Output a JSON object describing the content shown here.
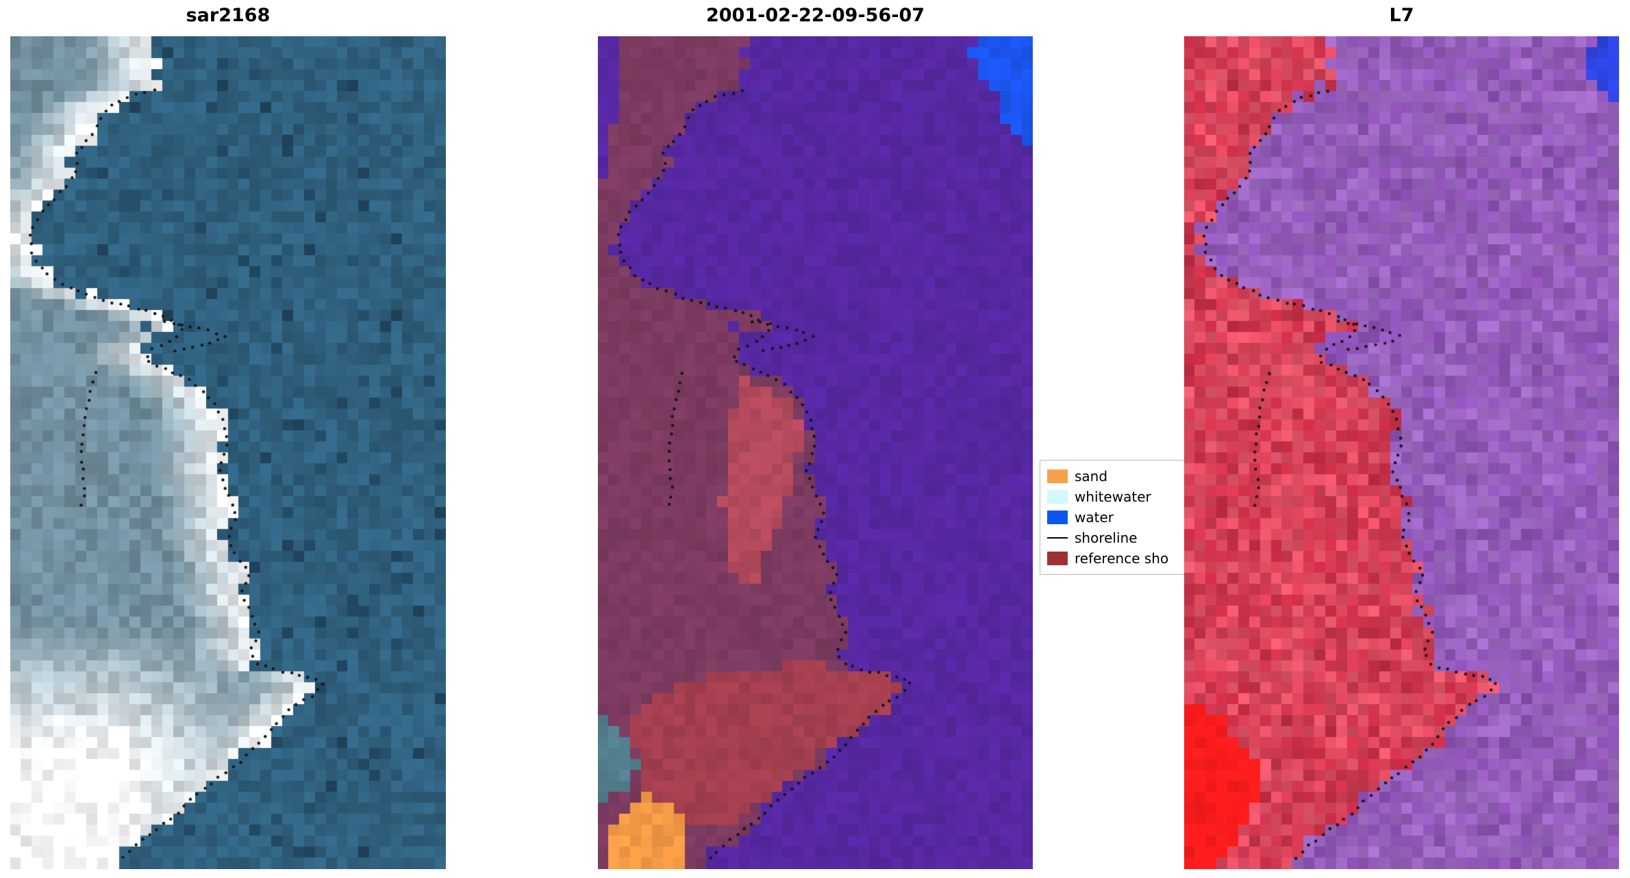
{
  "figure": {
    "panels": [
      {
        "id": "sar2168",
        "title": "sar2168"
      },
      {
        "id": "classified",
        "title": "2001-02-22-09-56-07"
      },
      {
        "id": "l7",
        "title": "L7"
      }
    ],
    "legend": {
      "items": [
        {
          "label": "sand",
          "swatch": "patch",
          "color": "#f7a24b"
        },
        {
          "label": "whitewater",
          "swatch": "patch",
          "color": "#d3f8ff"
        },
        {
          "label": "water",
          "swatch": "patch",
          "color": "#0c56f0"
        },
        {
          "label": "shoreline",
          "swatch": "line",
          "color": "#000000"
        },
        {
          "label": "reference sho",
          "swatch": "patch",
          "color": "#9e3132"
        }
      ]
    }
  },
  "chart_data": {
    "type": "image",
    "layout": "1 row x 3 panels, shared dotted shoreline overlay on all panels",
    "panels": [
      {
        "title": "sar2168",
        "content": "SAR amplitude image: bright white/grey sandy island along the left, dark desaturated blue water, dotted black detected shoreline"
      },
      {
        "title": "2001-02-22-09-56-07",
        "content": "classification map: violet water, dark maroon land probability, dark-red reference shoreline band mid and bottom, orange sand patch bottom-left, teal whitewater patch lower-left, royal blue water patch top-right corner, dotted black shoreline"
      },
      {
        "title": "L7",
        "content": "Landsat-7 false colour: red land mass, violet/magenta water, royal blue water patch top-right corner, saturated bright red patch bottom-left, dotted black shoreline"
      }
    ],
    "legend": {
      "position": "center, between second and third panel, right edge clipped by third panel",
      "entries": [
        {
          "label": "sand",
          "color": "#f7a24b",
          "style": "patch"
        },
        {
          "label": "whitewater",
          "color": "#d3f8ff",
          "style": "patch"
        },
        {
          "label": "water",
          "color": "#0c56f0",
          "style": "patch"
        },
        {
          "label": "shoreline",
          "color": "#000000",
          "style": "line"
        },
        {
          "label": "reference sho",
          "color": "#9e3132",
          "style": "patch"
        }
      ]
    }
  },
  "render": {
    "grid": {
      "cols": 40,
      "rows": 76
    },
    "dot": {
      "color": "#141414",
      "radius": 2.2,
      "spacing": 13
    },
    "shoreline_edge": [
      [
        0.065,
        0.33
      ],
      [
        0.075,
        0.26
      ],
      [
        0.09,
        0.215
      ],
      [
        0.12,
        0.185
      ],
      [
        0.14,
        0.15
      ],
      [
        0.16,
        0.155
      ],
      [
        0.185,
        0.12
      ],
      [
        0.21,
        0.075
      ],
      [
        0.235,
        0.045
      ],
      [
        0.26,
        0.05
      ],
      [
        0.285,
        0.08
      ],
      [
        0.3,
        0.13
      ],
      [
        0.315,
        0.2
      ],
      [
        0.325,
        0.28
      ],
      [
        0.335,
        0.35
      ],
      [
        0.35,
        0.4
      ],
      [
        0.365,
        0.37
      ],
      [
        0.375,
        0.325
      ],
      [
        0.39,
        0.31
      ],
      [
        0.4,
        0.36
      ],
      [
        0.415,
        0.42
      ],
      [
        0.435,
        0.46
      ],
      [
        0.46,
        0.49
      ],
      [
        0.49,
        0.5
      ],
      [
        0.52,
        0.48
      ],
      [
        0.55,
        0.5
      ],
      [
        0.575,
        0.52
      ],
      [
        0.6,
        0.5
      ],
      [
        0.625,
        0.52
      ],
      [
        0.645,
        0.55
      ],
      [
        0.67,
        0.53
      ],
      [
        0.69,
        0.55
      ],
      [
        0.715,
        0.57
      ],
      [
        0.74,
        0.55
      ],
      [
        0.755,
        0.57
      ],
      [
        0.762,
        0.62
      ],
      [
        0.768,
        0.68
      ],
      [
        0.775,
        0.72
      ],
      [
        0.79,
        0.7
      ],
      [
        0.8,
        0.66
      ],
      [
        0.815,
        0.63
      ],
      [
        0.83,
        0.6
      ],
      [
        0.85,
        0.57
      ],
      [
        0.87,
        0.53
      ],
      [
        0.89,
        0.48
      ],
      [
        0.91,
        0.43
      ],
      [
        0.935,
        0.38
      ],
      [
        0.955,
        0.33
      ],
      [
        0.975,
        0.28
      ],
      [
        0.99,
        0.25
      ]
    ],
    "shoreline_spurs": [
      [
        [
          0.355,
          0.342
        ],
        [
          0.405,
          0.347
        ],
        [
          0.455,
          0.353
        ],
        [
          0.495,
          0.36
        ],
        [
          0.465,
          0.369
        ],
        [
          0.415,
          0.374
        ],
        [
          0.37,
          0.378
        ]
      ],
      [
        [
          0.195,
          0.405
        ],
        [
          0.178,
          0.44
        ],
        [
          0.168,
          0.475
        ],
        [
          0.163,
          0.51
        ],
        [
          0.172,
          0.545
        ],
        [
          0.158,
          0.572
        ]
      ]
    ],
    "panels": [
      {
        "style": "sar",
        "seed": 7,
        "canvas": "panel-1",
        "water": "#30617f",
        "landDeep": "#72909f",
        "landBright": "#ffffff",
        "amp": 0.13,
        "patches": [
          {
            "color": "#30617f",
            "poly": [
              [
                0.315,
                0.348
              ],
              [
                0.43,
                0.352
              ],
              [
                0.425,
                0.386
              ],
              [
                0.33,
                0.392
              ]
            ]
          }
        ]
      },
      {
        "style": "classes",
        "seed": 11,
        "canvas": "panel-2",
        "water": "#5628a2",
        "land": "#7c3b60",
        "amp": 0.07,
        "patches": [
          {
            "color": "#5628a2",
            "poly": [
              [
                0,
                0
              ],
              [
                0.045,
                0
              ],
              [
                0.055,
                0.07
              ],
              [
                0.025,
                0.15
              ],
              [
                0,
                0.21
              ]
            ]
          },
          {
            "color": "#5628a2",
            "poly": [
              [
                0.315,
                0.348
              ],
              [
                0.43,
                0.352
              ],
              [
                0.425,
                0.386
              ],
              [
                0.33,
                0.392
              ]
            ]
          },
          {
            "color": "#1b55ee",
            "poly": [
              [
                0.86,
                0
              ],
              [
                1,
                0
              ],
              [
                1,
                0.135
              ],
              [
                0.93,
                0.1
              ],
              [
                0.9,
                0.06
              ],
              [
                0.86,
                0.03
              ]
            ]
          },
          {
            "color": "#f49a45",
            "poly": [
              [
                0.03,
                0.955
              ],
              [
                0.1,
                0.912
              ],
              [
                0.17,
                0.918
              ],
              [
                0.215,
                0.95
              ],
              [
                0.18,
                1.0
              ],
              [
                0.04,
                1.0
              ],
              [
                0.015,
                0.985
              ]
            ]
          },
          {
            "color": "#537f8f",
            "poly": [
              [
                0,
                0.815
              ],
              [
                0.05,
                0.835
              ],
              [
                0.085,
                0.87
              ],
              [
                0.055,
                0.91
              ],
              [
                0,
                0.925
              ]
            ]
          },
          {
            "color": "#b44a5c",
            "poly": [
              [
                0.32,
                0.41
              ],
              [
                0.43,
                0.43
              ],
              [
                0.47,
                0.47
              ],
              [
                0.45,
                0.53
              ],
              [
                0.41,
                0.6
              ],
              [
                0.35,
                0.66
              ],
              [
                0.3,
                0.64
              ],
              [
                0.29,
                0.56
              ],
              [
                0.3,
                0.47
              ]
            ]
          },
          {
            "color": "#a33f4f",
            "poly": [
              [
                0.1,
                0.8
              ],
              [
                0.25,
                0.77
              ],
              [
                0.45,
                0.755
              ],
              [
                0.62,
                0.76
              ],
              [
                0.71,
                0.775
              ],
              [
                0.66,
                0.81
              ],
              [
                0.55,
                0.85
              ],
              [
                0.42,
                0.9
              ],
              [
                0.32,
                0.945
              ],
              [
                0.2,
                0.955
              ],
              [
                0.11,
                0.91
              ],
              [
                0.07,
                0.85
              ]
            ]
          }
        ]
      },
      {
        "style": "l7",
        "seed": 23,
        "canvas": "panel-3",
        "water": "#8a4fb2",
        "waterLight": "#a06cc4",
        "land": "#c62b45",
        "landLight": "#e7596d",
        "amp": 0.1,
        "patches": [
          {
            "color": "#8a4fb2",
            "poly": [
              [
                0.315,
                0.348
              ],
              [
                0.43,
                0.352
              ],
              [
                0.425,
                0.386
              ],
              [
                0.33,
                0.392
              ]
            ]
          },
          {
            "color": "#2d44e0",
            "poly": [
              [
                0.93,
                0
              ],
              [
                1,
                0
              ],
              [
                1,
                0.105
              ],
              [
                0.965,
                0.07
              ],
              [
                0.93,
                0.035
              ]
            ]
          },
          {
            "color": "#ff1c1c",
            "poly": [
              [
                0,
                0.795
              ],
              [
                0.095,
                0.82
              ],
              [
                0.175,
                0.88
              ],
              [
                0.145,
                0.95
              ],
              [
                0.075,
                1.0
              ],
              [
                0,
                1.0
              ]
            ]
          }
        ]
      }
    ]
  }
}
